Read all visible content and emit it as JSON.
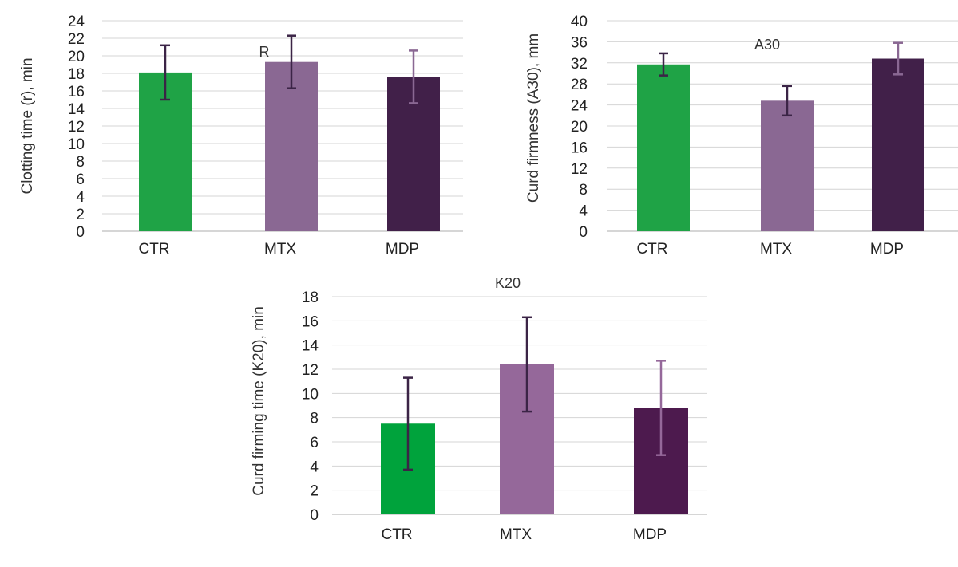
{
  "chart_data": [
    {
      "type": "bar",
      "title": "R",
      "ylabel": "Clotting time (r), min",
      "xlabel": "",
      "categories": [
        "CTR",
        "MTX",
        "MDP"
      ],
      "values": [
        18.1,
        19.3,
        17.6
      ],
      "errors": [
        3.1,
        3.0,
        3.0
      ],
      "ylim": [
        0,
        24
      ],
      "yticks": [
        0,
        2,
        4,
        6,
        8,
        10,
        12,
        14,
        16,
        18,
        20,
        22,
        24
      ],
      "grid": true,
      "bar_colors": [
        "#1fa346",
        "#8a6893",
        "#412049"
      ],
      "error_colors": [
        "#3b2446",
        "#3b2446",
        "#8a6893"
      ]
    },
    {
      "type": "bar",
      "title": "A30",
      "ylabel": "Curd firmness (A30), mm",
      "xlabel": "",
      "categories": [
        "CTR",
        "MTX",
        "MDP"
      ],
      "values": [
        31.7,
        24.8,
        32.8
      ],
      "errors": [
        2.1,
        2.8,
        3.0
      ],
      "ylim": [
        0,
        40
      ],
      "yticks": [
        0,
        4,
        8,
        12,
        16,
        20,
        24,
        28,
        32,
        36,
        40
      ],
      "grid": true,
      "bar_colors": [
        "#1fa346",
        "#8a6893",
        "#412049"
      ],
      "error_colors": [
        "#3b2446",
        "#3b2446",
        "#8a6893"
      ]
    },
    {
      "type": "bar",
      "title": "K20",
      "ylabel": "Curd firming time (K20), min",
      "xlabel": "",
      "categories": [
        "CTR",
        "MTX",
        "MDP"
      ],
      "values": [
        7.5,
        12.4,
        8.8
      ],
      "errors": [
        3.8,
        3.9,
        3.9
      ],
      "ylim": [
        0,
        18
      ],
      "yticks": [
        0,
        2,
        4,
        6,
        8,
        10,
        12,
        14,
        16,
        18
      ],
      "grid": true,
      "bar_colors": [
        "#00a33c",
        "#95689a",
        "#4d1a4e"
      ],
      "error_colors": [
        "#3b2446",
        "#3b2446",
        "#95689a"
      ]
    }
  ]
}
